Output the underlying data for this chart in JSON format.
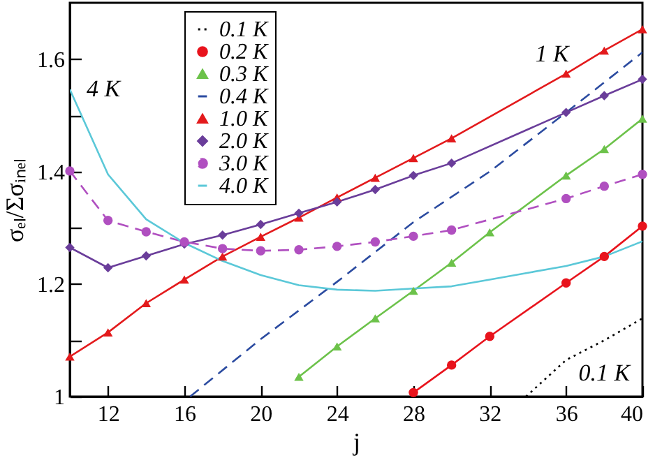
{
  "chart_data": {
    "type": "line",
    "xlabel": "j",
    "ylabel": "σₑₗ/Σσᵢₙₑₗ",
    "xlim": [
      10,
      40
    ],
    "ylim": [
      1,
      1.7
    ],
    "xticks": [
      12,
      16,
      20,
      24,
      28,
      32,
      36,
      40
    ],
    "yticks": [
      1,
      {
        "value": 1.1,
        "label": null
      },
      1.2,
      {
        "value": 1.3,
        "label": null
      },
      1.4,
      {
        "value": 1.5,
        "label": null
      },
      1.6
    ],
    "grid": false,
    "legend": "top left",
    "series": [
      {
        "name": "0.1 K",
        "color": "#000000",
        "line_style": "dotted",
        "marker": "none",
        "x": [
          33.9,
          36,
          38,
          40
        ],
        "values": [
          1.0,
          1.065,
          1.1,
          1.139
        ]
      },
      {
        "name": "0.2 K",
        "color": "#e8131c",
        "line_style": "solid",
        "marker": "circle",
        "x": [
          28,
          30,
          32,
          36,
          38,
          40
        ],
        "values": [
          1.007,
          1.056,
          1.107,
          1.202,
          1.249,
          1.303
        ]
      },
      {
        "name": "0.3 K",
        "color": "#6cc24a",
        "line_style": "solid",
        "marker": "triangle",
        "x": [
          22,
          24,
          26,
          28,
          30,
          32,
          36,
          38,
          40
        ],
        "values": [
          1.035,
          1.089,
          1.139,
          1.188,
          1.238,
          1.292,
          1.393,
          1.44,
          1.494
        ]
      },
      {
        "name": "0.4 K",
        "color": "#2b4ba0",
        "line_style": "dashed",
        "marker": "none",
        "x": [
          16.3,
          20,
          24,
          28,
          32,
          36,
          40
        ],
        "values": [
          1.0,
          1.102,
          1.204,
          1.31,
          1.4,
          1.505,
          1.612
        ]
      },
      {
        "name": "1.0 K",
        "color": "#e31a1c",
        "line_style": "solid",
        "marker": "triangle",
        "x": [
          10,
          12,
          14,
          16,
          18,
          20,
          22,
          24,
          26,
          28,
          30,
          36,
          38,
          40
        ],
        "values": [
          1.071,
          1.114,
          1.166,
          1.208,
          1.249,
          1.284,
          1.318,
          1.354,
          1.389,
          1.424,
          1.459,
          1.574,
          1.615,
          1.653
        ]
      },
      {
        "name": "2.0 K",
        "color": "#6a3d9a",
        "line_style": "solid",
        "marker": "diamond",
        "x": [
          10,
          12,
          14,
          16,
          18,
          20,
          22,
          24,
          26,
          28,
          30,
          36,
          38,
          40
        ],
        "values": [
          1.265,
          1.229,
          1.25,
          1.271,
          1.287,
          1.306,
          1.326,
          1.346,
          1.368,
          1.393,
          1.415,
          1.505,
          1.535,
          1.564
        ]
      },
      {
        "name": "3.0 K",
        "color": "#b04fc0",
        "line_style": "dashed",
        "marker": "circle",
        "x": [
          10,
          12,
          14,
          16,
          18,
          20,
          22,
          24,
          26,
          28,
          30,
          36,
          38,
          40
        ],
        "values": [
          1.401,
          1.313,
          1.293,
          1.275,
          1.263,
          1.259,
          1.261,
          1.267,
          1.275,
          1.285,
          1.296,
          1.352,
          1.374,
          1.395
        ]
      },
      {
        "name": "4.0 K",
        "color": "#5bc8d8",
        "line_style": "solid",
        "marker": "none",
        "x": [
          10,
          12,
          14,
          16,
          18,
          20,
          22,
          24,
          26,
          28,
          30,
          32,
          34,
          36,
          38,
          40
        ],
        "values": [
          1.546,
          1.395,
          1.315,
          1.273,
          1.241,
          1.216,
          1.198,
          1.19,
          1.188,
          1.192,
          1.196,
          1.208,
          1.22,
          1.232,
          1.249,
          1.276
        ]
      }
    ],
    "annotations": [
      {
        "text": "4 K",
        "x": 10,
        "y": 1.546
      },
      {
        "text": "1 K",
        "x": 36,
        "y": 1.574
      },
      {
        "text": "0.1 K",
        "x": 38,
        "y": 1.1
      }
    ]
  }
}
